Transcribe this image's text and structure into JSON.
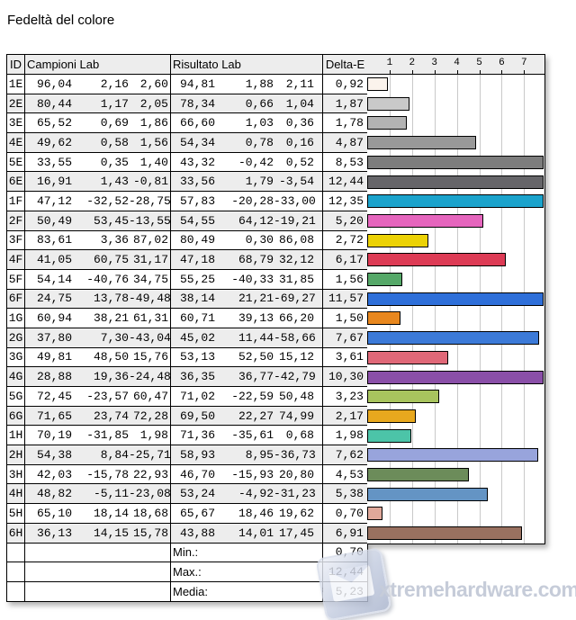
{
  "page": {
    "title": "Fedeltà del colore",
    "watermark": "xtremehardware.com"
  },
  "table": {
    "headers": {
      "id": "ID",
      "campioni": "Campioni Lab",
      "risultato": "Risultato Lab",
      "delta_e": "Delta-E"
    },
    "rows": [
      {
        "id": "1E",
        "campioni": [
          "96,04",
          "2,16",
          "2,60"
        ],
        "risultato": [
          "94,81",
          "1,88",
          "2,11"
        ],
        "delta_e": "0,92",
        "color": "#fbf3ec"
      },
      {
        "id": "2E",
        "campioni": [
          "80,44",
          "1,17",
          "2,05"
        ],
        "risultato": [
          "78,34",
          "0,66",
          "1,04"
        ],
        "delta_e": "1,87",
        "color": "#c9c9c9"
      },
      {
        "id": "3E",
        "campioni": [
          "65,52",
          "0,69",
          "1,86"
        ],
        "risultato": [
          "66,60",
          "1,03",
          "0,36"
        ],
        "delta_e": "1,78",
        "color": "#b3b3b3"
      },
      {
        "id": "4E",
        "campioni": [
          "49,62",
          "0,58",
          "1,56"
        ],
        "risultato": [
          "54,34",
          "0,78",
          "0,16"
        ],
        "delta_e": "4,87",
        "color": "#999999"
      },
      {
        "id": "5E",
        "campioni": [
          "33,55",
          "0,35",
          "1,40"
        ],
        "risultato": [
          "43,32",
          "-0,42",
          "0,52"
        ],
        "delta_e": "8,53",
        "color": "#7d7d7d"
      },
      {
        "id": "6E",
        "campioni": [
          "16,91",
          "1,43",
          "-0,81"
        ],
        "risultato": [
          "33,56",
          "1,79",
          "-3,54"
        ],
        "delta_e": "12,44",
        "color": "#666569"
      },
      {
        "id": "1F",
        "campioni": [
          "47,12",
          "-32,52",
          "-28,75"
        ],
        "risultato": [
          "57,83",
          "-20,28",
          "-33,00"
        ],
        "delta_e": "12,35",
        "color": "#1ba3cc"
      },
      {
        "id": "2F",
        "campioni": [
          "50,49",
          "53,45",
          "-13,55"
        ],
        "risultato": [
          "54,55",
          "64,12",
          "-19,21"
        ],
        "delta_e": "5,20",
        "color": "#e565bd"
      },
      {
        "id": "3F",
        "campioni": [
          "83,61",
          "3,36",
          "87,02"
        ],
        "risultato": [
          "80,49",
          "0,30",
          "86,08"
        ],
        "delta_e": "2,72",
        "color": "#ecd205"
      },
      {
        "id": "4F",
        "campioni": [
          "41,05",
          "60,75",
          "31,17"
        ],
        "risultato": [
          "47,18",
          "68,79",
          "32,12"
        ],
        "delta_e": "6,17",
        "color": "#dd3b55"
      },
      {
        "id": "5F",
        "campioni": [
          "54,14",
          "-40,76",
          "34,75"
        ],
        "risultato": [
          "55,25",
          "-40,33",
          "31,85"
        ],
        "delta_e": "1,56",
        "color": "#55a868"
      },
      {
        "id": "6F",
        "campioni": [
          "24,75",
          "13,78",
          "-49,48"
        ],
        "risultato": [
          "38,14",
          "21,21",
          "-69,27"
        ],
        "delta_e": "11,57",
        "color": "#2e6fd9"
      },
      {
        "id": "1G",
        "campioni": [
          "60,94",
          "38,21",
          "61,31"
        ],
        "risultato": [
          "60,71",
          "39,13",
          "66,20"
        ],
        "delta_e": "1,50",
        "color": "#e8871e"
      },
      {
        "id": "2G",
        "campioni": [
          "37,80",
          "7,30",
          "-43,04"
        ],
        "risultato": [
          "45,02",
          "11,44",
          "-58,66"
        ],
        "delta_e": "7,67",
        "color": "#3c7ad8"
      },
      {
        "id": "3G",
        "campioni": [
          "49,81",
          "48,50",
          "15,76"
        ],
        "risultato": [
          "53,13",
          "52,50",
          "15,12"
        ],
        "delta_e": "3,61",
        "color": "#e06878"
      },
      {
        "id": "4G",
        "campioni": [
          "28,88",
          "19,36",
          "-24,48"
        ],
        "risultato": [
          "36,35",
          "36,77",
          "-42,79"
        ],
        "delta_e": "10,30",
        "color": "#8a4fa8"
      },
      {
        "id": "5G",
        "campioni": [
          "72,45",
          "-23,57",
          "60,47"
        ],
        "risultato": [
          "71,02",
          "-22,59",
          "50,48"
        ],
        "delta_e": "3,23",
        "color": "#a8c45e"
      },
      {
        "id": "6G",
        "campioni": [
          "71,65",
          "23,74",
          "72,28"
        ],
        "risultato": [
          "69,50",
          "22,27",
          "74,99"
        ],
        "delta_e": "2,17",
        "color": "#e8a81e"
      },
      {
        "id": "1H",
        "campioni": [
          "70,19",
          "-31,85",
          "1,98"
        ],
        "risultato": [
          "71,36",
          "-35,61",
          "0,68"
        ],
        "delta_e": "1,98",
        "color": "#4cc4a8"
      },
      {
        "id": "2H",
        "campioni": [
          "54,38",
          "8,84",
          "-25,71"
        ],
        "risultato": [
          "58,93",
          "8,95",
          "-36,73"
        ],
        "delta_e": "7,62",
        "color": "#98a4dc"
      },
      {
        "id": "3H",
        "campioni": [
          "42,03",
          "-15,78",
          "22,93"
        ],
        "risultato": [
          "46,70",
          "-15,93",
          "20,80"
        ],
        "delta_e": "4,53",
        "color": "#6c8c5a"
      },
      {
        "id": "4H",
        "campioni": [
          "48,82",
          "-5,11",
          "-23,08"
        ],
        "risultato": [
          "53,24",
          "-4,92",
          "-31,23"
        ],
        "delta_e": "5,38",
        "color": "#6494c4"
      },
      {
        "id": "5H",
        "campioni": [
          "65,10",
          "18,14",
          "18,68"
        ],
        "risultato": [
          "65,67",
          "18,46",
          "19,62"
        ],
        "delta_e": "0,70",
        "color": "#dfa89a"
      },
      {
        "id": "6H",
        "campioni": [
          "36,13",
          "14,15",
          "15,78"
        ],
        "risultato": [
          "43,88",
          "14,01",
          "17,45"
        ],
        "delta_e": "6,91",
        "color": "#997160"
      }
    ],
    "summary": [
      {
        "label": "Min.:",
        "value": "0,70"
      },
      {
        "label": "Max.:",
        "value": "12,44"
      },
      {
        "label": "Media:",
        "value": "5,23"
      }
    ]
  },
  "chart_data": {
    "type": "bar",
    "orientation": "horizontal",
    "title": "Delta-E per patch",
    "categories": [
      "1E",
      "2E",
      "3E",
      "4E",
      "5E",
      "6E",
      "1F",
      "2F",
      "3F",
      "4F",
      "5F",
      "6F",
      "1G",
      "2G",
      "3G",
      "4G",
      "5G",
      "6G",
      "1H",
      "2H",
      "3H",
      "4H",
      "5H",
      "6H"
    ],
    "values": [
      0.92,
      1.87,
      1.78,
      4.87,
      8.53,
      12.44,
      12.35,
      5.2,
      2.72,
      6.17,
      1.56,
      11.57,
      1.5,
      7.67,
      3.61,
      10.3,
      3.23,
      2.17,
      1.98,
      7.62,
      4.53,
      5.38,
      0.7,
      6.91
    ],
    "colors": [
      "#fbf3ec",
      "#c9c9c9",
      "#b3b3b3",
      "#999999",
      "#7d7d7d",
      "#666569",
      "#1ba3cc",
      "#e565bd",
      "#ecd205",
      "#dd3b55",
      "#55a868",
      "#2e6fd9",
      "#e8871e",
      "#3c7ad8",
      "#e06878",
      "#8a4fa8",
      "#a8c45e",
      "#e8a81e",
      "#4cc4a8",
      "#98a4dc",
      "#6c8c5a",
      "#6494c4",
      "#dfa89a",
      "#997160"
    ],
    "axis_ticks": [
      1,
      2,
      3,
      4,
      5,
      6,
      7
    ],
    "xlim": [
      0,
      7.9
    ],
    "grid": true,
    "gridline_color": "#c9c9c9",
    "min": 0.7,
    "max": 12.44,
    "mean": 5.23
  }
}
